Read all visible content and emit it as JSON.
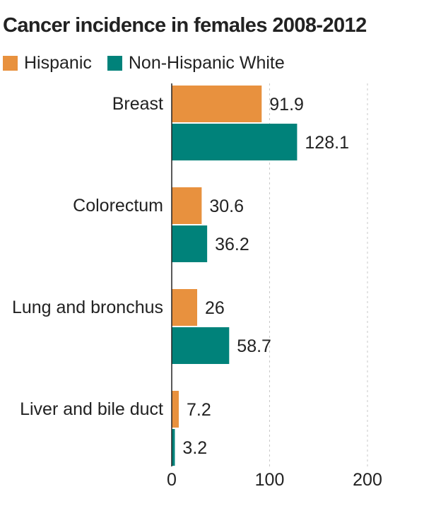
{
  "chart_data": {
    "type": "bar",
    "orientation": "horizontal",
    "title": "Cancer incidence in females 2008-2012",
    "categories": [
      "Breast",
      "Colorectum",
      "Lung and bronchus",
      "Liver and bile duct"
    ],
    "series": [
      {
        "name": "Hispanic",
        "color": "#E8913E",
        "values": [
          91.9,
          30.6,
          26,
          7.2
        ],
        "labels": [
          "91.9",
          "30.6",
          "26",
          "7.2"
        ]
      },
      {
        "name": "Non-Hispanic White",
        "color": "#00827A",
        "values": [
          128.1,
          36.2,
          58.7,
          3.2
        ],
        "labels": [
          "128.1",
          "36.2",
          "58.7",
          "3.2"
        ]
      }
    ],
    "xlim": [
      0,
      200
    ],
    "xticks": [
      0,
      100,
      200
    ],
    "xtick_labels": [
      "0",
      "100",
      "200"
    ],
    "grid": true,
    "grid_style": "dotted",
    "legend_position": "top-left"
  }
}
